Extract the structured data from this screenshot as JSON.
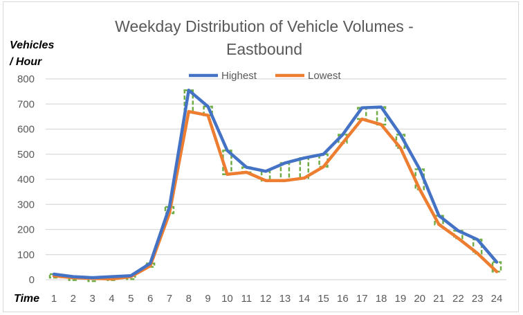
{
  "chart_data": {
    "type": "line",
    "title": [
      "Weekday Distribution of Vehicle Volumes -",
      "Eastbound"
    ],
    "ylabel": [
      "Vehicles",
      "/ Hour"
    ],
    "xlabel": "Time",
    "x": [
      1,
      2,
      3,
      4,
      5,
      6,
      7,
      8,
      9,
      10,
      11,
      12,
      13,
      14,
      15,
      16,
      17,
      18,
      19,
      20,
      21,
      22,
      23,
      24
    ],
    "ylim": [
      0,
      800
    ],
    "yticks": [
      0,
      100,
      200,
      300,
      400,
      500,
      600,
      700,
      800
    ],
    "grid": true,
    "legend_position": "top",
    "series": [
      {
        "name": "Highest",
        "color": "#4472c4",
        "values": [
          22,
          12,
          8,
          12,
          16,
          65,
          290,
          755,
          690,
          515,
          448,
          432,
          465,
          485,
          500,
          578,
          685,
          688,
          578,
          440,
          255,
          195,
          160,
          70
        ]
      },
      {
        "name": "Lowest",
        "color": "#ed7d31",
        "values": [
          15,
          8,
          5,
          3,
          12,
          55,
          265,
          670,
          655,
          420,
          428,
          395,
          395,
          405,
          450,
          545,
          640,
          618,
          525,
          360,
          220,
          165,
          105,
          32
        ]
      }
    ],
    "range_bar_color": "#70ad47"
  }
}
